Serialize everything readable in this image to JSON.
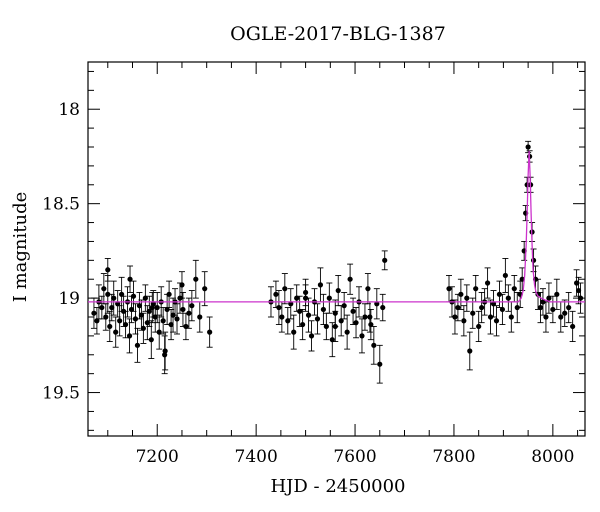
{
  "chart_data": {
    "type": "scatter",
    "title": "OGLE-2017-BLG-1387",
    "xlabel": "HJD - 2450000",
    "ylabel": "I magnitude",
    "xlim": [
      7060,
      8065
    ],
    "ylim": [
      19.73,
      17.75
    ],
    "y_inverted": true,
    "xticks": [
      7200,
      7400,
      7600,
      7800,
      8000
    ],
    "xtick_labels": [
      "7200",
      "7400",
      "7600",
      "7800",
      "8000"
    ],
    "yticks": [
      18,
      18.5,
      19,
      19.5
    ],
    "ytick_labels": [
      "18",
      "18.5",
      "19",
      "19.5"
    ],
    "grid": false,
    "colors": {
      "points": "#000000",
      "model": "#cc33cc"
    },
    "series": [
      {
        "kind": "points_with_errorbars",
        "x": [
          7072,
          7078,
          7082,
          7088,
          7092,
          7096,
          7100,
          7104,
          7108,
          7112,
          7116,
          7120,
          7124,
          7128,
          7132,
          7136,
          7140,
          7144,
          7148,
          7152,
          7156,
          7160,
          7164,
          7168,
          7172,
          7176,
          7180,
          7184,
          7188,
          7192,
          7196,
          7200,
          7204,
          7208,
          7212,
          7216,
          7220,
          7224,
          7228,
          7232,
          7236,
          7240,
          7246,
          7252,
          7258,
          7264,
          7270,
          7278,
          7286,
          7296,
          7306,
          7100,
          7145,
          7190,
          7215,
          7250,
          7430,
          7440,
          7446,
          7452,
          7458,
          7464,
          7470,
          7476,
          7482,
          7488,
          7494,
          7500,
          7506,
          7512,
          7518,
          7524,
          7530,
          7536,
          7542,
          7548,
          7554,
          7560,
          7566,
          7572,
          7578,
          7584,
          7590,
          7596,
          7602,
          7608,
          7614,
          7620,
          7626,
          7632,
          7638,
          7644,
          7650,
          7656,
          7660,
          7500,
          7560,
          7630,
          7790,
          7796,
          7802,
          7808,
          7814,
          7820,
          7826,
          7832,
          7838,
          7844,
          7850,
          7856,
          7862,
          7868,
          7874,
          7880,
          7886,
          7892,
          7898,
          7904,
          7910,
          7916,
          7922,
          7928,
          7934,
          7938,
          7942,
          7945,
          7948,
          7950,
          7953,
          7955,
          7958,
          7961,
          7965,
          7970,
          7975,
          7980,
          7986,
          7992,
          8000,
          8008,
          8016,
          8024,
          8032,
          8040,
          8048,
          8052,
          8056
        ],
        "y": [
          19.08,
          19.12,
          19.02,
          19.05,
          18.95,
          19.1,
          18.98,
          19.15,
          19.05,
          19.0,
          19.18,
          19.03,
          19.12,
          18.98,
          19.07,
          19.14,
          19.02,
          19.2,
          19.06,
          18.99,
          19.11,
          19.25,
          19.04,
          19.09,
          19.16,
          19.0,
          19.13,
          19.07,
          19.22,
          19.03,
          19.1,
          19.05,
          19.18,
          19.02,
          19.12,
          19.28,
          19.06,
          18.98,
          19.14,
          19.09,
          19.02,
          19.11,
          19.0,
          19.06,
          19.15,
          19.08,
          19.04,
          18.9,
          19.1,
          18.95,
          19.18,
          18.85,
          18.9,
          19.05,
          19.3,
          18.93,
          19.02,
          18.98,
          19.05,
          19.1,
          18.95,
          19.12,
          19.03,
          19.18,
          19.0,
          19.07,
          19.14,
          18.97,
          19.09,
          19.2,
          19.02,
          19.11,
          18.93,
          19.06,
          19.15,
          19.0,
          19.22,
          19.08,
          18.96,
          19.12,
          19.04,
          19.18,
          18.9,
          19.07,
          19.13,
          19.02,
          19.2,
          19.1,
          18.95,
          19.14,
          19.25,
          19.03,
          19.35,
          19.05,
          18.8,
          19.0,
          19.15,
          19.1,
          18.95,
          19.02,
          19.1,
          19.05,
          18.98,
          19.12,
          19.0,
          19.28,
          19.08,
          18.95,
          19.15,
          19.05,
          19.02,
          18.92,
          19.1,
          19.03,
          19.12,
          18.98,
          19.06,
          18.88,
          19.0,
          19.1,
          18.95,
          19.05,
          18.98,
          18.9,
          18.75,
          18.55,
          18.4,
          18.2,
          18.25,
          18.4,
          18.65,
          18.8,
          18.9,
          18.98,
          19.05,
          19.02,
          19.1,
          19.0,
          19.06,
          18.98,
          19.1,
          19.08,
          19.05,
          19.15,
          18.92,
          18.96,
          19.0
        ],
        "err": [
          0.08,
          0.07,
          0.09,
          0.06,
          0.08,
          0.07,
          0.1,
          0.08,
          0.07,
          0.09,
          0.08,
          0.07,
          0.08,
          0.09,
          0.08,
          0.07,
          0.08,
          0.09,
          0.07,
          0.08,
          0.08,
          0.09,
          0.07,
          0.08,
          0.08,
          0.07,
          0.09,
          0.08,
          0.1,
          0.07,
          0.08,
          0.08,
          0.09,
          0.08,
          0.07,
          0.1,
          0.08,
          0.07,
          0.08,
          0.09,
          0.07,
          0.08,
          0.08,
          0.09,
          0.07,
          0.08,
          0.08,
          0.1,
          0.08,
          0.09,
          0.08,
          0.06,
          0.07,
          0.08,
          0.1,
          0.07,
          0.08,
          0.07,
          0.09,
          0.08,
          0.08,
          0.07,
          0.08,
          0.09,
          0.07,
          0.08,
          0.08,
          0.07,
          0.09,
          0.08,
          0.07,
          0.08,
          0.09,
          0.08,
          0.07,
          0.08,
          0.09,
          0.07,
          0.08,
          0.08,
          0.07,
          0.09,
          0.08,
          0.07,
          0.08,
          0.08,
          0.09,
          0.07,
          0.08,
          0.08,
          0.1,
          0.08,
          0.1,
          0.07,
          0.05,
          0.07,
          0.08,
          0.08,
          0.07,
          0.08,
          0.09,
          0.07,
          0.08,
          0.08,
          0.07,
          0.1,
          0.08,
          0.07,
          0.08,
          0.08,
          0.07,
          0.08,
          0.09,
          0.07,
          0.08,
          0.07,
          0.08,
          0.09,
          0.07,
          0.08,
          0.07,
          0.08,
          0.07,
          0.06,
          0.05,
          0.04,
          0.04,
          0.03,
          0.03,
          0.04,
          0.05,
          0.06,
          0.07,
          0.08,
          0.08,
          0.07,
          0.08,
          0.08,
          0.07,
          0.08,
          0.08,
          0.07,
          0.08,
          0.08,
          0.07,
          0.07,
          0.08
        ]
      },
      {
        "kind": "model_curve",
        "baseline": 19.02,
        "peak_x": 7952,
        "peak_y": 18.22,
        "x": [
          7060,
          7930,
          7936,
          7940,
          7943,
          7946,
          7948,
          7950,
          7952,
          7954,
          7956,
          7958,
          7960,
          7963,
          7966,
          7970,
          7976,
          7984,
          7995,
          8065
        ],
        "y": [
          19.02,
          19.02,
          19.0,
          18.96,
          18.88,
          18.72,
          18.55,
          18.35,
          18.22,
          18.35,
          18.55,
          18.72,
          18.85,
          18.93,
          18.97,
          18.99,
          19.0,
          19.01,
          19.02,
          19.02
        ]
      }
    ]
  }
}
